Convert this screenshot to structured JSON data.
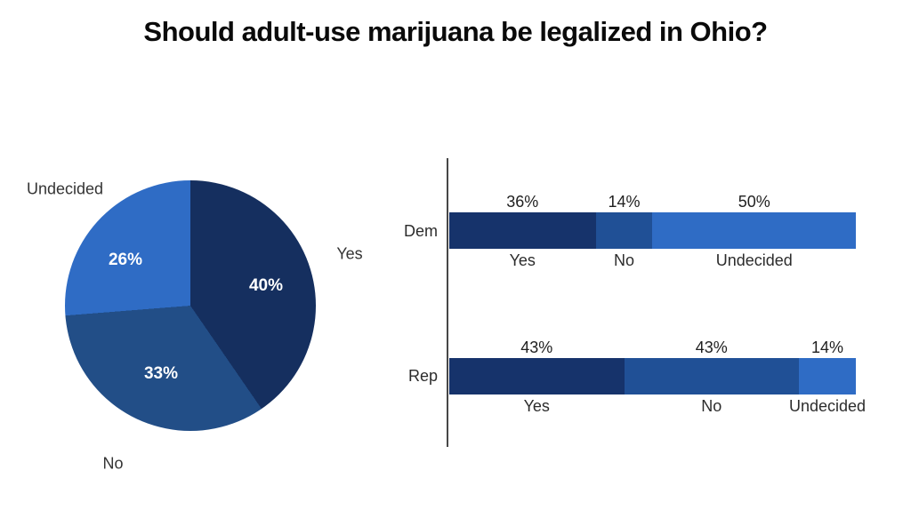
{
  "title": "Should adult-use marijuana be legalized in Ohio?",
  "palette": {
    "dark_navy": "#16336b",
    "medium_blue": "#205096",
    "bright_blue": "#2f6cc5",
    "axis_color": "#474747",
    "text_dark": "#1f1f1f",
    "pie_label_text": "#ffffff"
  },
  "chart_data": [
    {
      "type": "pie",
      "start_angle": "12 o'clock",
      "direction": "clockwise",
      "slices": [
        {
          "label": "Yes",
          "value": 40,
          "value_label": "40%",
          "color": "#152f5f"
        },
        {
          "label": "No",
          "value": 33,
          "value_label": "33%",
          "color": "#224e87"
        },
        {
          "label": "Undecided",
          "value": 26,
          "value_label": "26%",
          "color": "#2f6cc5"
        }
      ]
    },
    {
      "type": "bar",
      "subtype": "horizontal-stacked",
      "xlim": [
        0,
        100
      ],
      "rows": [
        {
          "label": "Dem",
          "segments": [
            {
              "label": "Yes",
              "value": 36,
              "value_label": "36%",
              "color": "#16336b"
            },
            {
              "label": "No",
              "value": 14,
              "value_label": "14%",
              "color": "#205096"
            },
            {
              "label": "Undecided",
              "value": 50,
              "value_label": "50%",
              "color": "#2f6cc5"
            }
          ]
        },
        {
          "label": "Rep",
          "segments": [
            {
              "label": "Yes",
              "value": 43,
              "value_label": "43%",
              "color": "#16336b"
            },
            {
              "label": "No",
              "value": 43,
              "value_label": "43%",
              "color": "#205096"
            },
            {
              "label": "Undecided",
              "value": 14,
              "value_label": "14%",
              "color": "#2f6cc5"
            }
          ]
        }
      ]
    }
  ]
}
